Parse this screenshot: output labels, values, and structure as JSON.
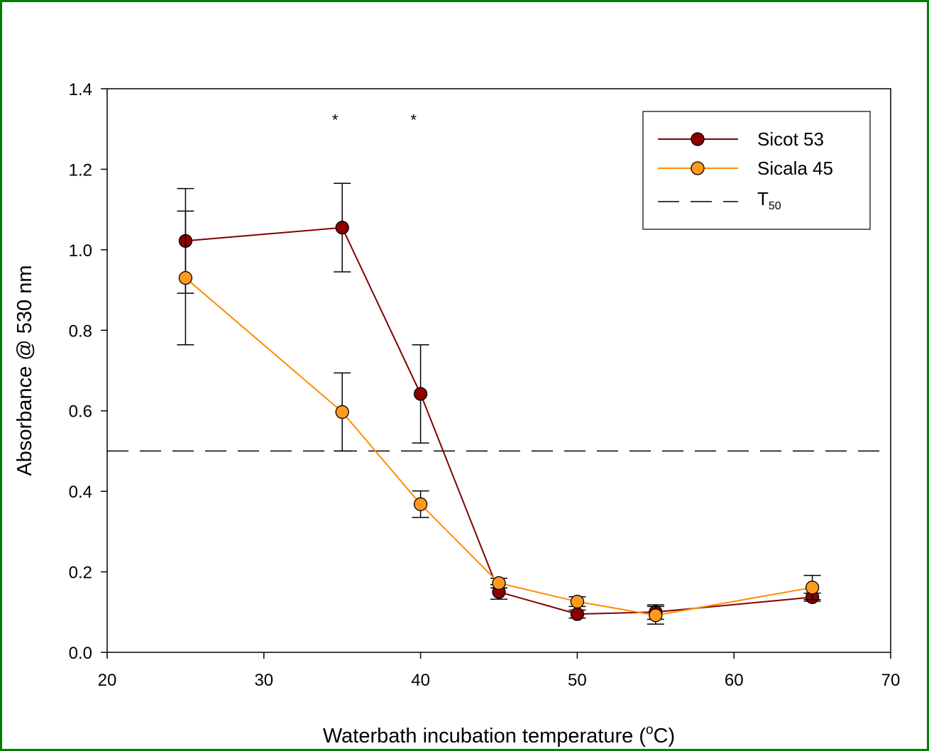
{
  "chart_data": {
    "type": "line",
    "xlabel": {
      "main": "Waterbath incubation temperature (",
      "sup": "o",
      "rest": "C)"
    },
    "ylabel": "Absorbance @ 530 nm",
    "xlim": [
      20,
      70
    ],
    "ylim": [
      0,
      1.4
    ],
    "xticks": [
      20,
      30,
      40,
      50,
      60,
      70
    ],
    "yticks": [
      "0.0",
      "0.2",
      "0.4",
      "0.6",
      "0.8",
      "1.0",
      "1.2",
      "1.4"
    ],
    "grid": false,
    "legend_position": "top-right",
    "series": [
      {
        "name": "Sicot 53",
        "color": "#800000",
        "marker_fill": "#8B0000",
        "x": [
          25,
          35,
          40,
          45,
          50,
          55,
          65
        ],
        "y": [
          1.022,
          1.055,
          0.642,
          0.15,
          0.095,
          0.1,
          0.137
        ],
        "err": [
          0.13,
          0.11,
          0.122,
          0.018,
          0.01,
          0.018,
          0.01
        ]
      },
      {
        "name": "Sicala 45",
        "color": "#FF8C00",
        "marker_fill": "#FF9A1F",
        "x": [
          25,
          35,
          40,
          45,
          50,
          55,
          65
        ],
        "y": [
          0.93,
          0.597,
          0.368,
          0.172,
          0.126,
          0.092,
          0.161
        ],
        "err": [
          0.166,
          0.097,
          0.033,
          0.012,
          0.012,
          0.022,
          0.03
        ]
      }
    ],
    "reference_line": {
      "name": "T",
      "subscript": "50",
      "y": 0.5,
      "style": "dashed"
    },
    "annotations": [
      {
        "text": "*",
        "x": 35,
        "y": 1.33
      },
      {
        "text": "*",
        "x": 40,
        "y": 1.33
      }
    ]
  }
}
